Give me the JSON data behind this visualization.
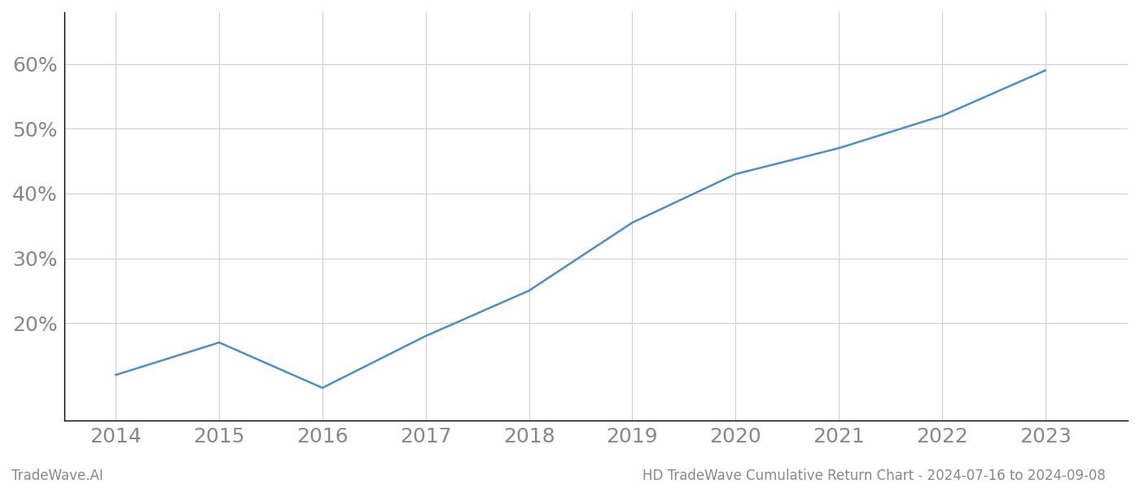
{
  "x_years": [
    2014,
    2015,
    2016,
    2017,
    2018,
    2019,
    2020,
    2021,
    2022,
    2023
  ],
  "y_values": [
    0.12,
    0.17,
    0.1,
    0.18,
    0.25,
    0.355,
    0.43,
    0.47,
    0.52,
    0.59
  ],
  "line_color": "#4a90c4",
  "line_width": 1.8,
  "background_color": "#ffffff",
  "grid_color": "#cccccc",
  "title_text": "HD TradeWave Cumulative Return Chart - 2024-07-16 to 2024-09-08",
  "watermark_text": "TradeWave.AI",
  "title_color": "#888888",
  "watermark_color": "#888888",
  "xlim": [
    2013.5,
    2023.8
  ],
  "ylim": [
    0.05,
    0.68
  ],
  "yticks": [
    0.2,
    0.3,
    0.4,
    0.5,
    0.6
  ],
  "ytick_labels": [
    "20%",
    "30%",
    "40%",
    "50%",
    "60%"
  ],
  "xticks": [
    2014,
    2015,
    2016,
    2017,
    2018,
    2019,
    2020,
    2021,
    2022,
    2023
  ],
  "title_fontsize": 12,
  "watermark_fontsize": 12,
  "tick_fontsize": 18,
  "axis_label_color": "#888888"
}
